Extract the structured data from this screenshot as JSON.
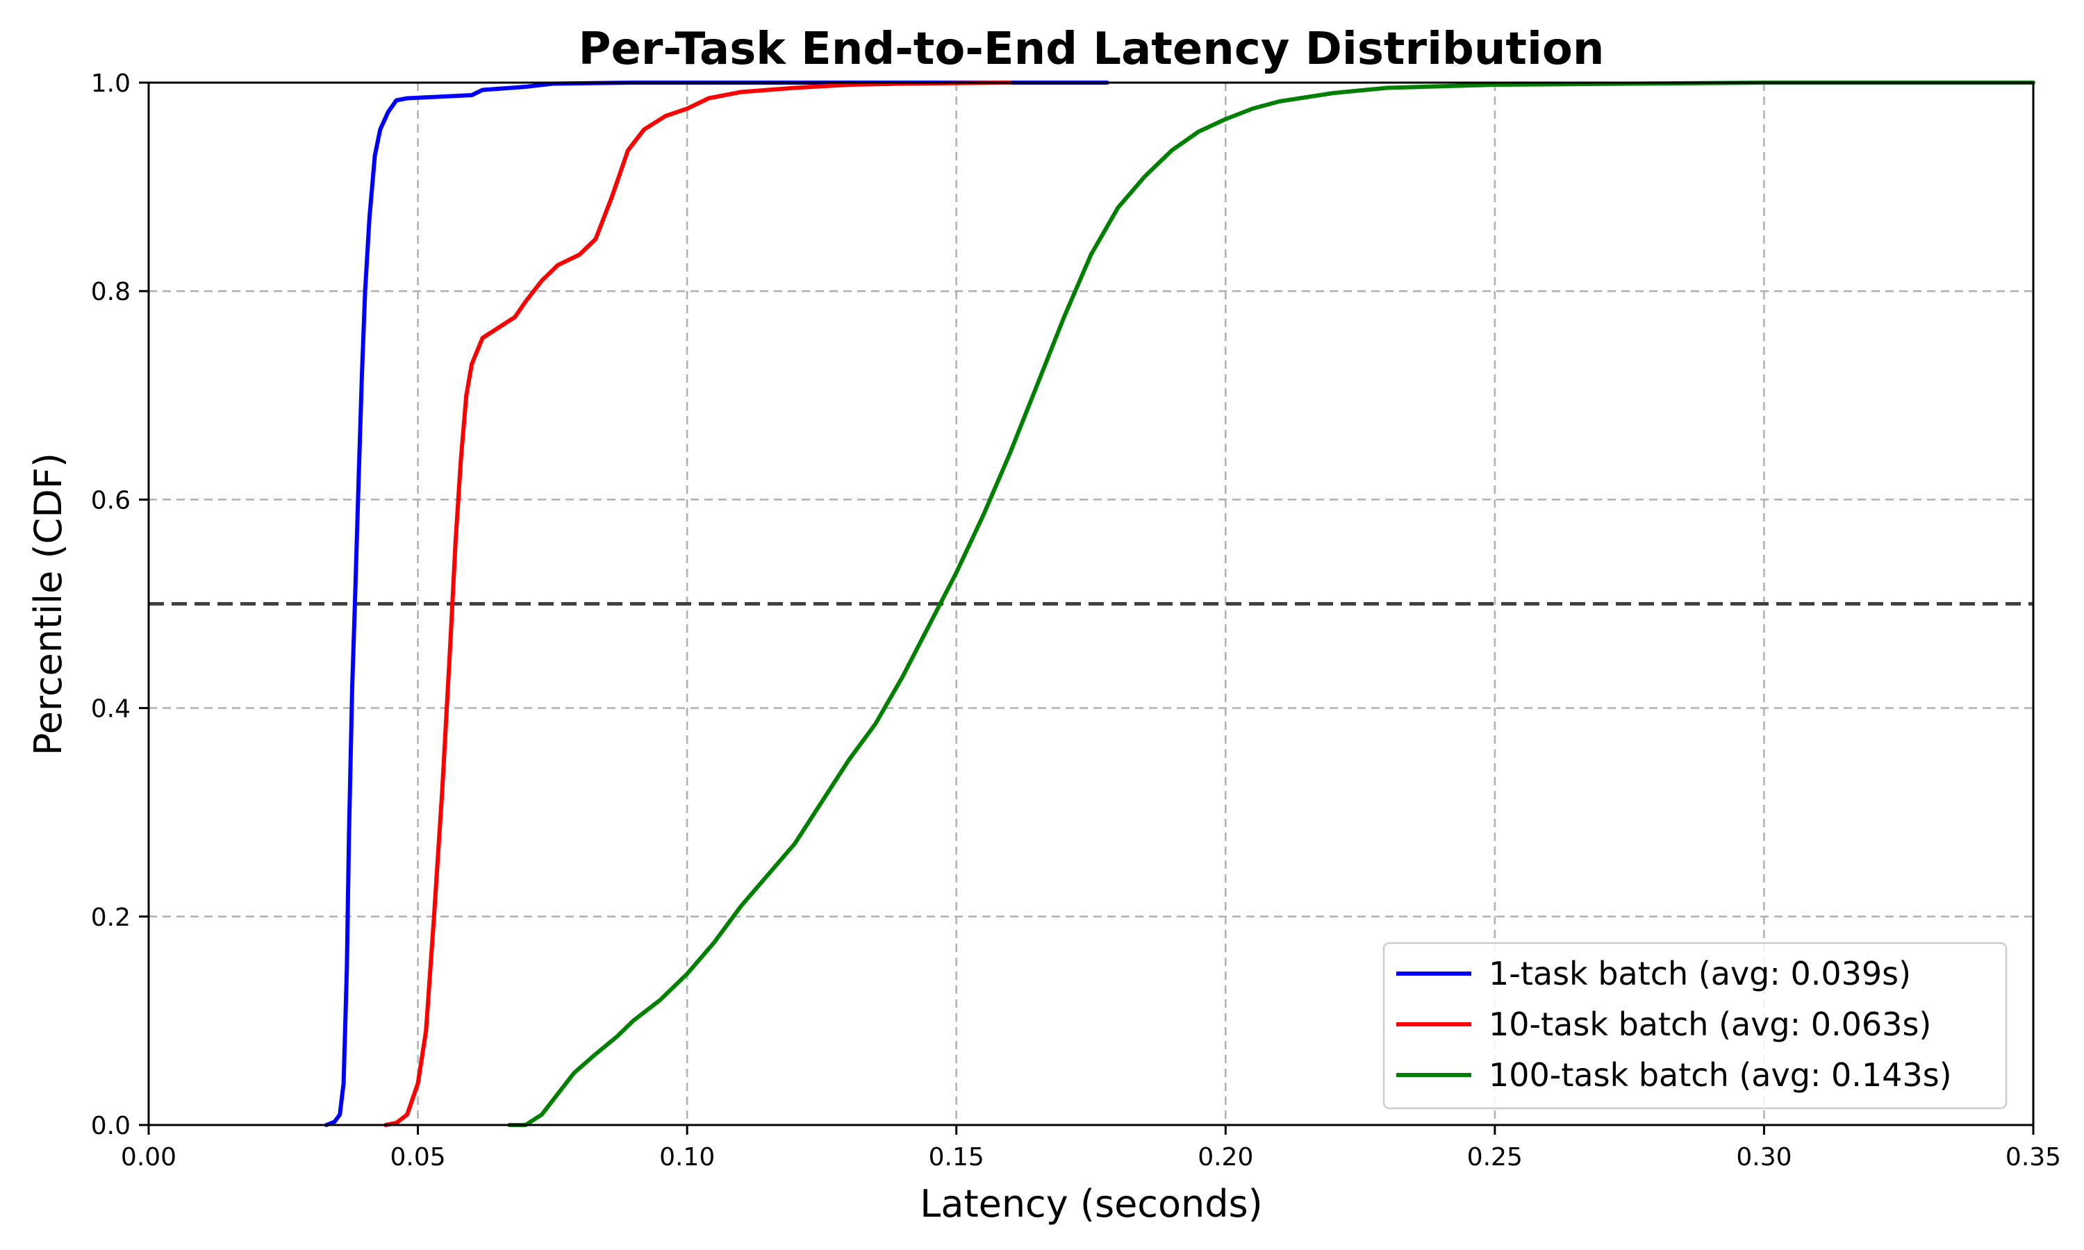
{
  "chart_data": {
    "type": "line",
    "title": "Per-Task End-to-End Latency Distribution",
    "xlabel": "Latency (seconds)",
    "ylabel": "Percentile (CDF)",
    "xlim": [
      0,
      0.35
    ],
    "ylim": [
      0,
      1.0
    ],
    "xticks": [
      "0.00",
      "0.05",
      "0.10",
      "0.15",
      "0.20",
      "0.25",
      "0.30",
      "0.35"
    ],
    "yticks": [
      "0.0",
      "0.2",
      "0.4",
      "0.6",
      "0.8",
      "1.0"
    ],
    "grid": true,
    "legend_position": "bottom-right",
    "reference_line": {
      "y": 0.5,
      "color": "#404040",
      "style": "dashed"
    },
    "series": [
      {
        "name": "1-task batch (avg: 0.039s)",
        "color": "#0000ff",
        "points": [
          [
            0.033,
            0.0
          ],
          [
            0.0345,
            0.003
          ],
          [
            0.0355,
            0.01
          ],
          [
            0.0362,
            0.04
          ],
          [
            0.0368,
            0.15
          ],
          [
            0.0372,
            0.28
          ],
          [
            0.0378,
            0.42
          ],
          [
            0.0383,
            0.5
          ],
          [
            0.039,
            0.62
          ],
          [
            0.0396,
            0.72
          ],
          [
            0.0402,
            0.8
          ],
          [
            0.041,
            0.87
          ],
          [
            0.042,
            0.93
          ],
          [
            0.043,
            0.955
          ],
          [
            0.0445,
            0.972
          ],
          [
            0.046,
            0.983
          ],
          [
            0.048,
            0.985
          ],
          [
            0.052,
            0.986
          ],
          [
            0.056,
            0.987
          ],
          [
            0.06,
            0.988
          ],
          [
            0.062,
            0.993
          ],
          [
            0.07,
            0.996
          ],
          [
            0.075,
            0.999
          ],
          [
            0.09,
            1.0
          ],
          [
            0.178,
            1.0
          ]
        ]
      },
      {
        "name": "10-task batch (avg: 0.063s)",
        "color": "#ff0000",
        "points": [
          [
            0.044,
            0.0
          ],
          [
            0.046,
            0.002
          ],
          [
            0.048,
            0.01
          ],
          [
            0.05,
            0.04
          ],
          [
            0.0515,
            0.09
          ],
          [
            0.053,
            0.2
          ],
          [
            0.0545,
            0.32
          ],
          [
            0.056,
            0.46
          ],
          [
            0.057,
            0.56
          ],
          [
            0.058,
            0.64
          ],
          [
            0.059,
            0.7
          ],
          [
            0.06,
            0.73
          ],
          [
            0.062,
            0.755
          ],
          [
            0.065,
            0.765
          ],
          [
            0.068,
            0.775
          ],
          [
            0.07,
            0.79
          ],
          [
            0.073,
            0.81
          ],
          [
            0.076,
            0.825
          ],
          [
            0.08,
            0.835
          ],
          [
            0.083,
            0.85
          ],
          [
            0.086,
            0.89
          ],
          [
            0.089,
            0.935
          ],
          [
            0.092,
            0.955
          ],
          [
            0.096,
            0.968
          ],
          [
            0.1,
            0.975
          ],
          [
            0.104,
            0.985
          ],
          [
            0.11,
            0.991
          ],
          [
            0.12,
            0.995
          ],
          [
            0.13,
            0.998
          ],
          [
            0.14,
            0.999
          ],
          [
            0.16,
            1.0
          ]
        ]
      },
      {
        "name": "100-task batch (avg: 0.143s)",
        "color": "#008000",
        "points": [
          [
            0.067,
            0.0
          ],
          [
            0.07,
            0.0
          ],
          [
            0.073,
            0.01
          ],
          [
            0.076,
            0.03
          ],
          [
            0.079,
            0.05
          ],
          [
            0.083,
            0.068
          ],
          [
            0.087,
            0.085
          ],
          [
            0.09,
            0.1
          ],
          [
            0.095,
            0.12
          ],
          [
            0.1,
            0.145
          ],
          [
            0.105,
            0.175
          ],
          [
            0.11,
            0.21
          ],
          [
            0.115,
            0.24
          ],
          [
            0.12,
            0.27
          ],
          [
            0.125,
            0.31
          ],
          [
            0.13,
            0.35
          ],
          [
            0.135,
            0.385
          ],
          [
            0.14,
            0.43
          ],
          [
            0.145,
            0.48
          ],
          [
            0.15,
            0.53
          ],
          [
            0.155,
            0.585
          ],
          [
            0.16,
            0.645
          ],
          [
            0.165,
            0.71
          ],
          [
            0.17,
            0.775
          ],
          [
            0.175,
            0.835
          ],
          [
            0.18,
            0.88
          ],
          [
            0.185,
            0.91
          ],
          [
            0.19,
            0.935
          ],
          [
            0.195,
            0.953
          ],
          [
            0.2,
            0.965
          ],
          [
            0.205,
            0.975
          ],
          [
            0.21,
            0.982
          ],
          [
            0.22,
            0.99
          ],
          [
            0.23,
            0.995
          ],
          [
            0.25,
            0.998
          ],
          [
            0.3,
            1.0
          ],
          [
            0.35,
            1.0
          ]
        ]
      }
    ]
  }
}
